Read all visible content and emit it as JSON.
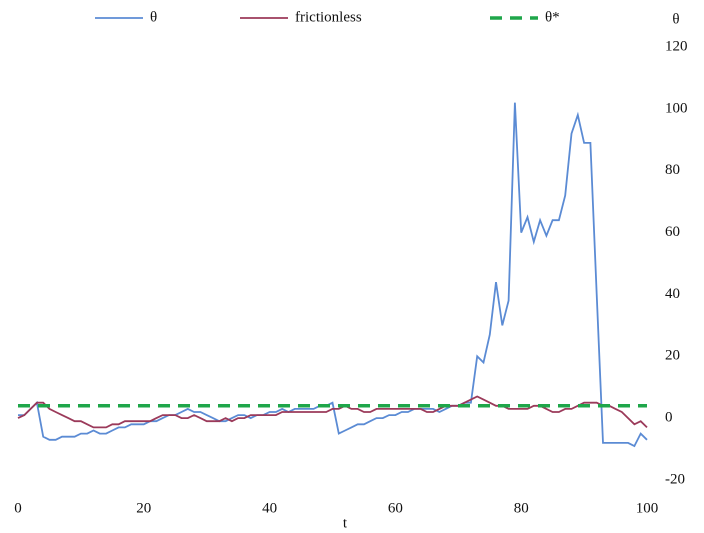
{
  "chart_data": {
    "type": "line",
    "x_label": "t",
    "y_label": "θ",
    "x": [
      0,
      1,
      2,
      3,
      4,
      5,
      6,
      7,
      8,
      9,
      10,
      11,
      12,
      13,
      14,
      15,
      16,
      17,
      18,
      19,
      20,
      21,
      22,
      23,
      24,
      25,
      26,
      27,
      28,
      29,
      30,
      31,
      32,
      33,
      34,
      35,
      36,
      37,
      38,
      39,
      40,
      41,
      42,
      43,
      44,
      45,
      46,
      47,
      48,
      49,
      50,
      51,
      52,
      53,
      54,
      55,
      56,
      57,
      58,
      59,
      60,
      61,
      62,
      63,
      64,
      65,
      66,
      67,
      68,
      69,
      70,
      71,
      72,
      73,
      74,
      75,
      76,
      77,
      78,
      79,
      80,
      81,
      82,
      83,
      84,
      85,
      86,
      87,
      88,
      89,
      90,
      91,
      92,
      93,
      94,
      95,
      96,
      97,
      98,
      99,
      100
    ],
    "series": [
      {
        "name": "θ",
        "color": "#5b8bd4",
        "dash": false,
        "values": [
          1,
          1,
          3,
          5,
          -6,
          -7,
          -7,
          -6,
          -6,
          -6,
          -5,
          -5,
          -4,
          -5,
          -5,
          -4,
          -3,
          -3,
          -2,
          -2,
          -2,
          -1,
          -1,
          0,
          1,
          1,
          2,
          3,
          2,
          2,
          1,
          0,
          -1,
          -1,
          0,
          1,
          1,
          0,
          1,
          1,
          2,
          2,
          3,
          2,
          3,
          3,
          3,
          3,
          4,
          4,
          5,
          -5,
          -4,
          -3,
          -2,
          -2,
          -1,
          0,
          0,
          1,
          1,
          2,
          2,
          3,
          3,
          3,
          3,
          2,
          3,
          4,
          4,
          5,
          5,
          20,
          18,
          27,
          44,
          30,
          38,
          102,
          60,
          65,
          57,
          64,
          59,
          64,
          64,
          72,
          92,
          98,
          89,
          89,
          40,
          -8,
          -8,
          -8,
          -8,
          -8,
          -9,
          -5,
          -7
        ]
      },
      {
        "name": "frictionless",
        "color": "#9b3a5a",
        "dash": false,
        "values": [
          0,
          1,
          3,
          5,
          5,
          3,
          2,
          1,
          0,
          -1,
          -1,
          -2,
          -3,
          -3,
          -3,
          -2,
          -2,
          -1,
          -1,
          -1,
          -1,
          -1,
          0,
          1,
          1,
          1,
          0,
          0,
          1,
          0,
          -1,
          -1,
          -1,
          0,
          -1,
          0,
          0,
          1,
          1,
          1,
          1,
          1,
          2,
          2,
          2,
          2,
          2,
          2,
          2,
          2,
          3,
          3,
          4,
          3,
          3,
          2,
          2,
          3,
          3,
          3,
          3,
          3,
          3,
          3,
          3,
          2,
          2,
          3,
          4,
          4,
          4,
          5,
          6,
          7,
          6,
          5,
          4,
          4,
          3,
          3,
          3,
          3,
          4,
          4,
          3,
          2,
          2,
          3,
          3,
          4,
          5,
          5,
          5,
          4,
          4,
          3,
          2,
          0,
          -2,
          -1,
          -3
        ]
      },
      {
        "name": "θ*",
        "color": "#1fa64a",
        "dash": true,
        "x": [
          0,
          100
        ],
        "values": [
          4,
          4
        ]
      }
    ],
    "xlim": [
      0,
      100
    ],
    "xticks": [
      0,
      20,
      40,
      60,
      80,
      100
    ],
    "ylim": [
      -20,
      120
    ],
    "yticks": [
      {
        "value": -20,
        "label": "-20"
      },
      0,
      20,
      40,
      60,
      80,
      100,
      120
    ],
    "legend": "top"
  }
}
